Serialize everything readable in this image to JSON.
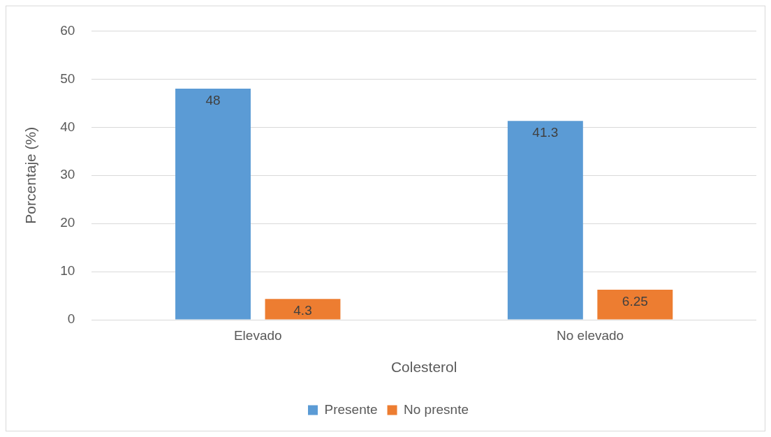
{
  "chart_data": {
    "type": "bar",
    "categories": [
      "Elevado",
      "No elevado"
    ],
    "series": [
      {
        "name": "Presente",
        "color": "#5b9bd5",
        "values": [
          48,
          41.3
        ]
      },
      {
        "name": "No presnte",
        "color": "#ed7d31",
        "values": [
          4.3,
          6.25
        ]
      }
    ],
    "xlabel": "Colesterol",
    "ylabel": "Porcentaje (%)",
    "ylim": [
      0,
      60
    ],
    "yticks": [
      0,
      10,
      20,
      30,
      40,
      50,
      60
    ],
    "grid": "y",
    "legend": "bottom",
    "data_labels": true
  }
}
